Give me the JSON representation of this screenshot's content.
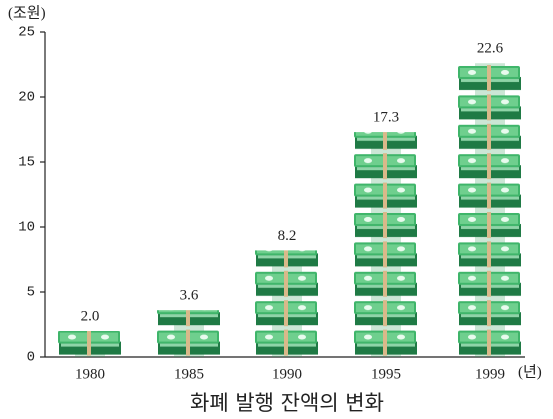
{
  "chart_data": {
    "type": "bar",
    "title": "화폐 발행 잔액의 변화",
    "y_label": "(조원)",
    "x_label": "(년)",
    "categories": [
      "1980",
      "1985",
      "1990",
      "1995",
      "1999"
    ],
    "values": [
      2.0,
      3.6,
      8.2,
      17.3,
      22.6
    ],
    "value_labels": [
      "2.0",
      "3.6",
      "8.2",
      "17.3",
      "22.6"
    ],
    "color": "#2f9a57",
    "ylim": [
      0,
      25
    ],
    "yticks": [
      0,
      5,
      10,
      15,
      20,
      25
    ],
    "grid": false
  }
}
